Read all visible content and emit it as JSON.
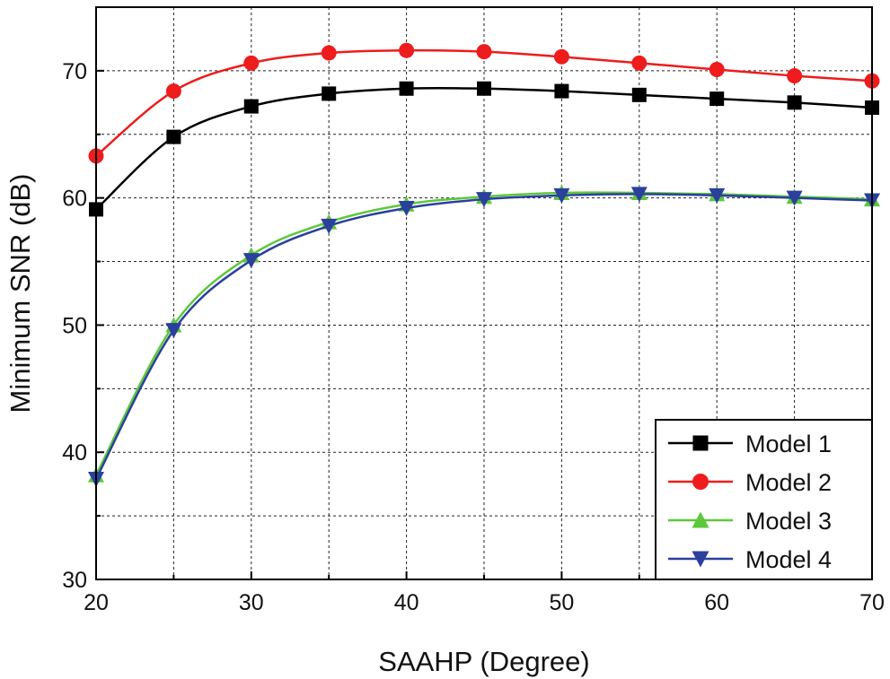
{
  "chart_data": {
    "type": "line",
    "title": "",
    "xlabel": "SAAHP (Degree)",
    "ylabel": "Minimum SNR (dB)",
    "xlim": [
      20,
      70
    ],
    "ylim": [
      30,
      75
    ],
    "x_ticks": [
      20,
      30,
      40,
      50,
      60,
      70
    ],
    "y_ticks": [
      30,
      40,
      50,
      60,
      70
    ],
    "grid": true,
    "legend_position": "bottom-right",
    "x": [
      20,
      25,
      30,
      35,
      40,
      45,
      50,
      55,
      60,
      65,
      70
    ],
    "series": [
      {
        "name": "Model 1",
        "color": "#000000",
        "marker": "square",
        "values": [
          59.1,
          64.8,
          67.2,
          68.2,
          68.6,
          68.6,
          68.4,
          68.1,
          67.8,
          67.5,
          67.1
        ]
      },
      {
        "name": "Model 2",
        "color": "#ee1c1c",
        "marker": "circle",
        "values": [
          63.3,
          68.4,
          70.6,
          71.4,
          71.6,
          71.5,
          71.1,
          70.6,
          70.1,
          69.6,
          69.2
        ]
      },
      {
        "name": "Model 3",
        "color": "#5cc83a",
        "marker": "triangle-up",
        "values": [
          38.2,
          50.0,
          55.5,
          58.1,
          59.5,
          60.1,
          60.4,
          60.4,
          60.3,
          60.1,
          59.9
        ]
      },
      {
        "name": "Model 4",
        "color": "#2b3f9c",
        "marker": "triangle-down",
        "values": [
          37.9,
          49.6,
          55.1,
          57.8,
          59.2,
          59.9,
          60.2,
          60.3,
          60.2,
          60.0,
          59.8
        ]
      }
    ]
  }
}
